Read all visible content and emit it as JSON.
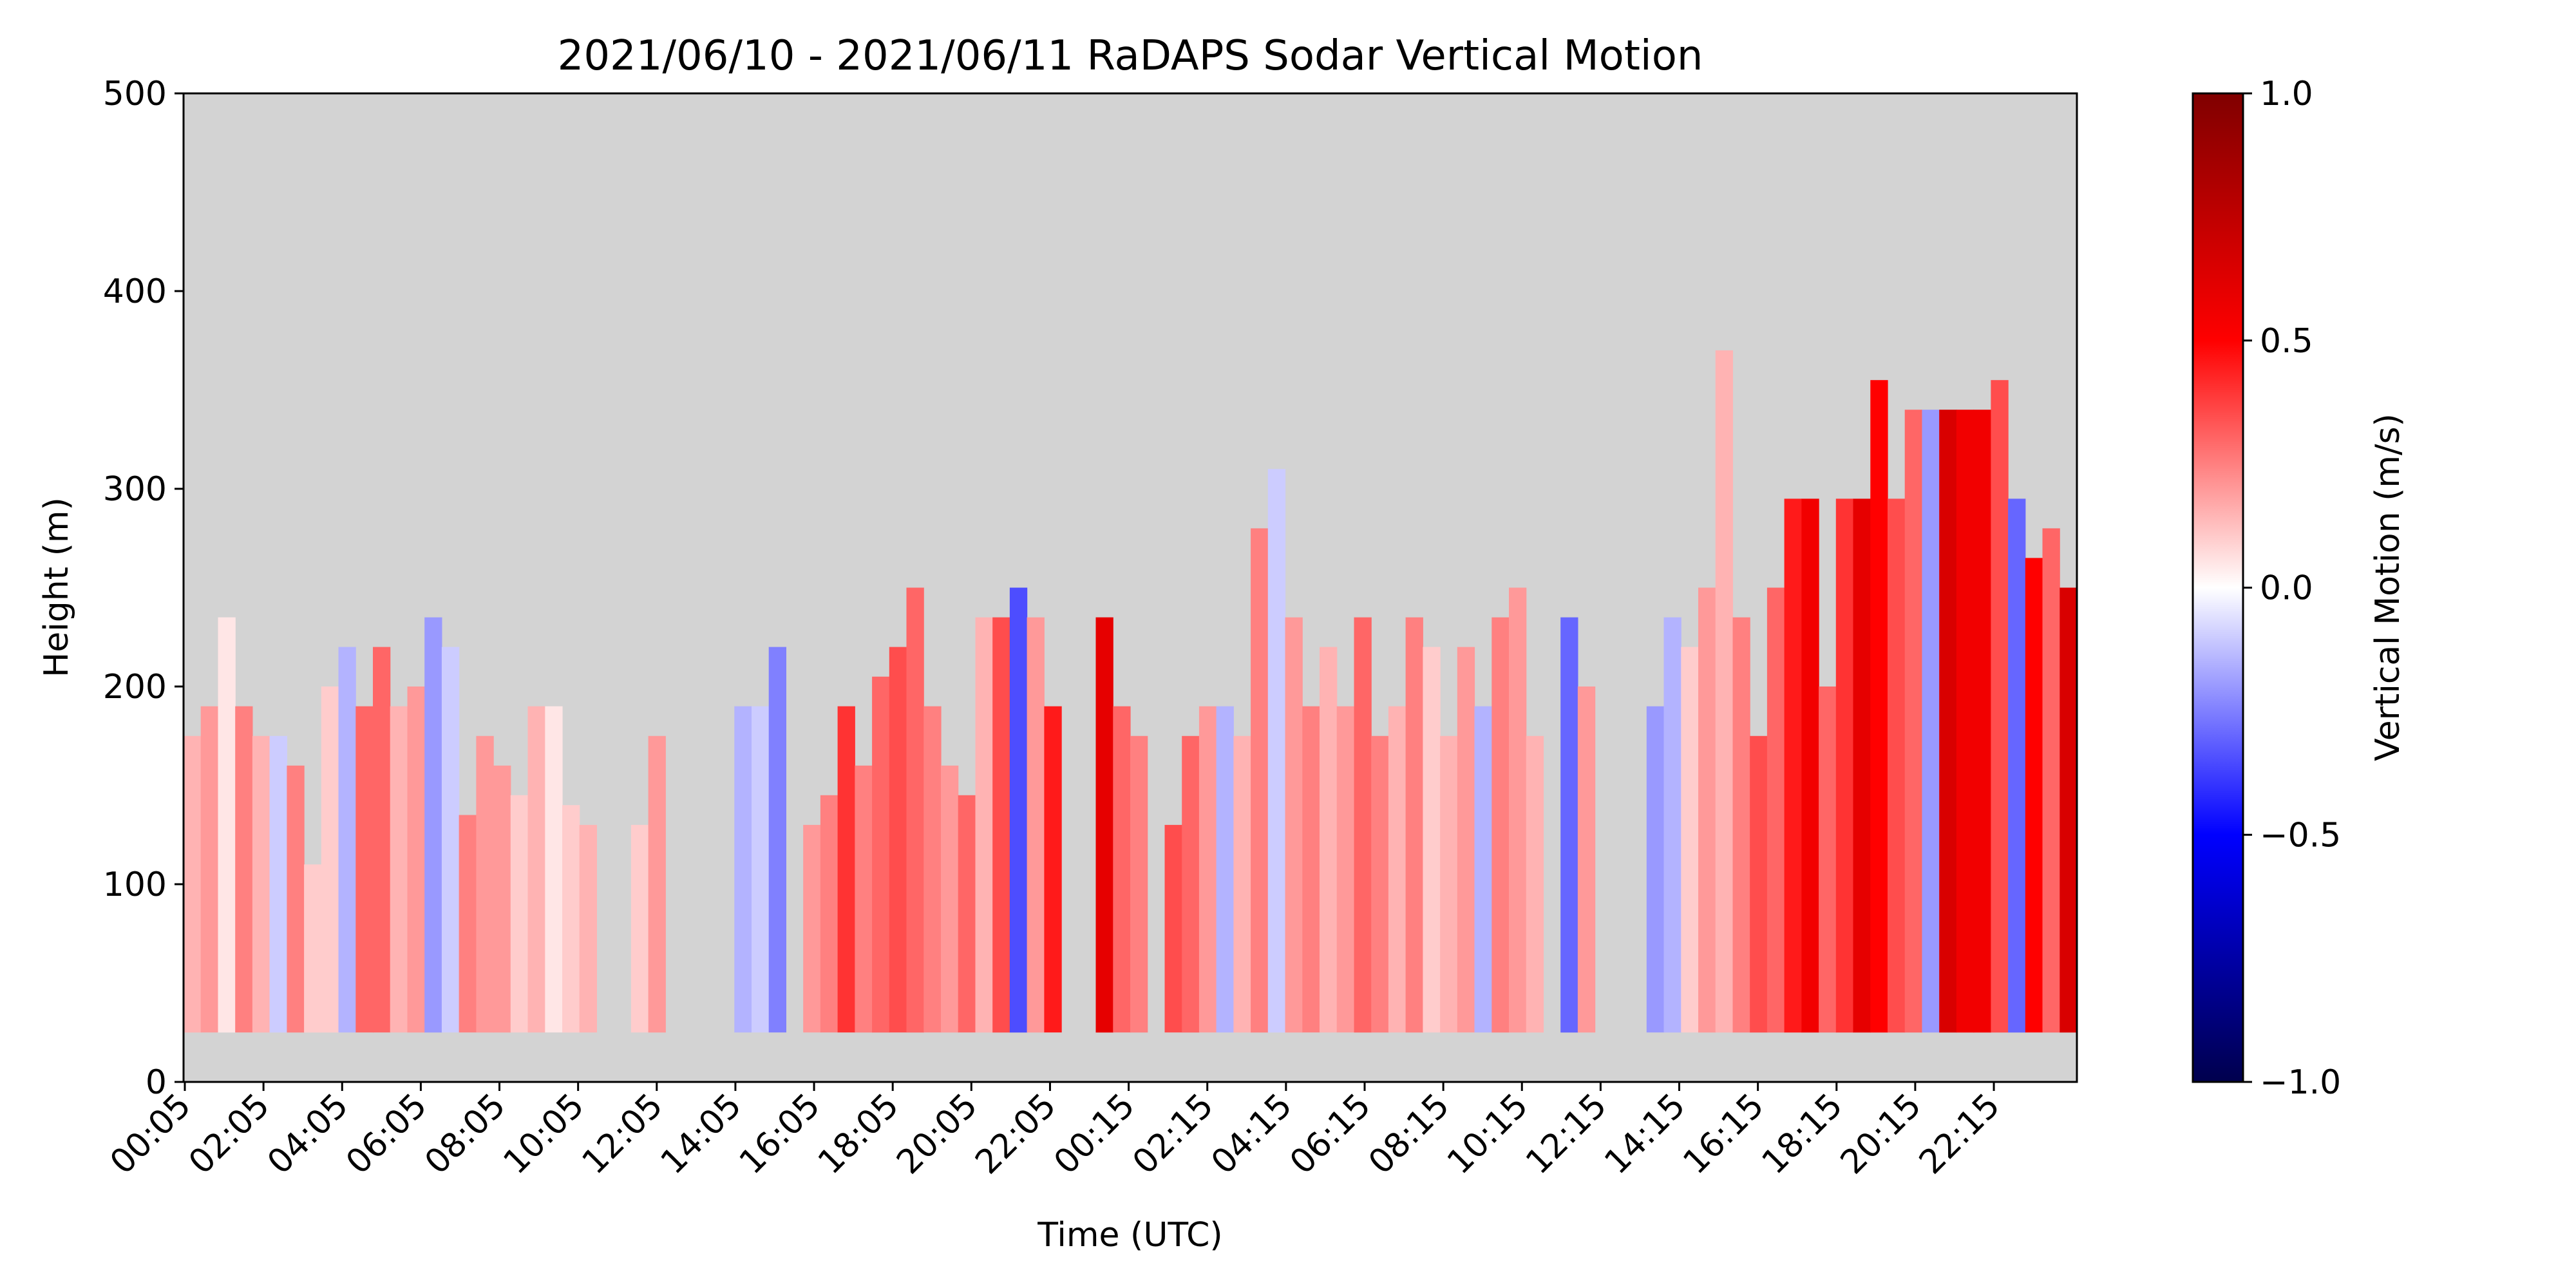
{
  "chart_data": {
    "type": "heatmap",
    "title": "2021/06/10 - 2021/06/11 RaDAPS Sodar Vertical Motion",
    "xlabel": "Time (UTC)",
    "ylabel": "Height (m)",
    "x_tick_labels": [
      "00:05",
      "02:05",
      "04:05",
      "06:05",
      "08:05",
      "10:05",
      "12:05",
      "14:05",
      "16:05",
      "18:05",
      "20:05",
      "22:05",
      "00:15",
      "02:15",
      "04:15",
      "06:15",
      "08:15",
      "10:15",
      "12:15",
      "14:15",
      "16:15",
      "18:15",
      "20:15",
      "22:15"
    ],
    "y_ticks": [
      0,
      100,
      200,
      300,
      400,
      500
    ],
    "ylim": [
      0,
      500
    ],
    "colorbar": {
      "label": "Vertical Motion (m/s)",
      "ticks": [
        1.0,
        0.5,
        0.0,
        -0.5,
        -1.0
      ],
      "tick_labels": [
        "1.0",
        "0.5",
        "0.0",
        "−0.5",
        "−1.0"
      ],
      "range": [
        -1.0,
        1.0
      ],
      "colormap": "seismic"
    },
    "missing_color": "#d3d3d3",
    "data_min_height": 25,
    "columns": [
      [
        0,
        175,
        0.15
      ],
      [
        1,
        190,
        0.2
      ],
      [
        2,
        235,
        0.05
      ],
      [
        3,
        190,
        0.25
      ],
      [
        4,
        175,
        0.15
      ],
      [
        5,
        175,
        -0.1
      ],
      [
        6,
        160,
        0.25
      ],
      [
        7,
        110,
        0.1
      ],
      [
        8,
        200,
        0.1
      ],
      [
        9,
        220,
        -0.15
      ],
      [
        10,
        190,
        0.3
      ],
      [
        11,
        220,
        0.3
      ],
      [
        12,
        190,
        0.15
      ],
      [
        13,
        200,
        0.2
      ],
      [
        14,
        235,
        -0.2
      ],
      [
        15,
        220,
        -0.1
      ],
      [
        16,
        135,
        0.25
      ],
      [
        17,
        175,
        0.2
      ],
      [
        18,
        160,
        0.2
      ],
      [
        19,
        145,
        0.1
      ],
      [
        20,
        190,
        0.15
      ],
      [
        21,
        190,
        0.05
      ],
      [
        22,
        140,
        0.1
      ],
      [
        23,
        130,
        0.15
      ],
      [
        26,
        130,
        0.1
      ],
      [
        27,
        175,
        0.2
      ],
      [
        32,
        190,
        -0.15
      ],
      [
        33,
        190,
        -0.1
      ],
      [
        34,
        220,
        -0.25
      ],
      [
        36,
        130,
        0.2
      ],
      [
        37,
        145,
        0.25
      ],
      [
        38,
        190,
        0.4
      ],
      [
        39,
        160,
        0.25
      ],
      [
        40,
        205,
        0.3
      ],
      [
        41,
        220,
        0.35
      ],
      [
        42,
        250,
        0.3
      ],
      [
        43,
        190,
        0.25
      ],
      [
        44,
        160,
        0.2
      ],
      [
        45,
        145,
        0.3
      ],
      [
        46,
        235,
        0.15
      ],
      [
        47,
        235,
        0.35
      ],
      [
        48,
        250,
        -0.35
      ],
      [
        49,
        235,
        0.2
      ],
      [
        50,
        190,
        0.45
      ],
      [
        53,
        235,
        0.6
      ],
      [
        54,
        190,
        0.3
      ],
      [
        55,
        175,
        0.25
      ],
      [
        57,
        130,
        0.35
      ],
      [
        58,
        175,
        0.3
      ],
      [
        59,
        190,
        0.2
      ],
      [
        60,
        190,
        -0.15
      ],
      [
        61,
        175,
        0.15
      ],
      [
        62,
        280,
        0.25
      ],
      [
        63,
        310,
        -0.1
      ],
      [
        64,
        235,
        0.2
      ],
      [
        65,
        190,
        0.25
      ],
      [
        66,
        220,
        0.15
      ],
      [
        67,
        190,
        0.2
      ],
      [
        68,
        235,
        0.3
      ],
      [
        69,
        175,
        0.25
      ],
      [
        70,
        190,
        0.15
      ],
      [
        71,
        235,
        0.25
      ],
      [
        72,
        220,
        0.1
      ],
      [
        73,
        175,
        0.15
      ],
      [
        74,
        220,
        0.2
      ],
      [
        75,
        190,
        -0.15
      ],
      [
        76,
        235,
        0.25
      ],
      [
        77,
        250,
        0.2
      ],
      [
        78,
        175,
        0.15
      ],
      [
        80,
        235,
        -0.3
      ],
      [
        81,
        200,
        0.2
      ],
      [
        85,
        190,
        -0.2
      ],
      [
        86,
        235,
        -0.15
      ],
      [
        87,
        220,
        0.1
      ],
      [
        88,
        250,
        0.2
      ],
      [
        89,
        370,
        0.15
      ],
      [
        90,
        235,
        0.25
      ],
      [
        91,
        175,
        0.35
      ],
      [
        92,
        250,
        0.3
      ],
      [
        93,
        295,
        0.45
      ],
      [
        94,
        295,
        0.55
      ],
      [
        95,
        200,
        0.3
      ],
      [
        96,
        295,
        0.4
      ],
      [
        97,
        295,
        0.6
      ],
      [
        98,
        355,
        0.5
      ],
      [
        99,
        295,
        0.35
      ],
      [
        100,
        340,
        0.3
      ],
      [
        101,
        340,
        -0.2
      ],
      [
        102,
        340,
        0.65
      ],
      [
        103,
        340,
        0.55
      ],
      [
        104,
        340,
        0.55
      ],
      [
        105,
        355,
        0.35
      ],
      [
        106,
        295,
        -0.3
      ],
      [
        107,
        265,
        0.5
      ],
      [
        108,
        280,
        0.3
      ],
      [
        109,
        250,
        0.65
      ]
    ]
  }
}
